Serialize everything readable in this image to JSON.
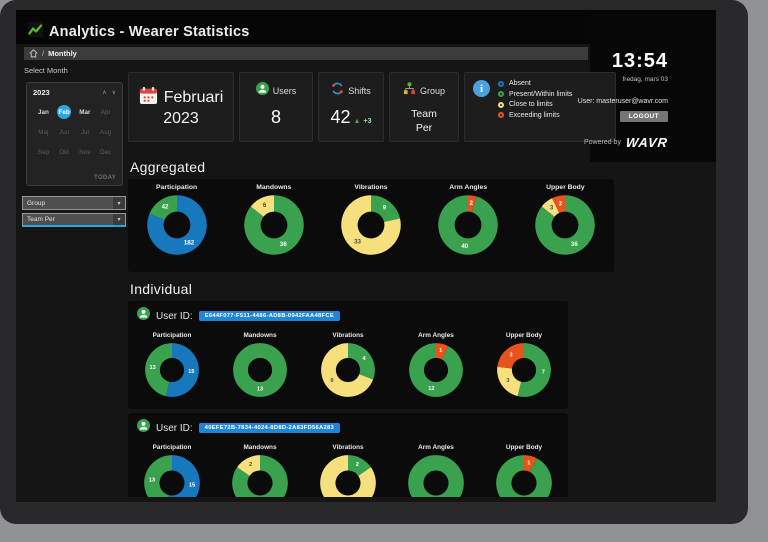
{
  "window": {
    "title": "Analytics - Wearer Statistics",
    "breadcrumb": {
      "separator": "/",
      "current": "Monthly"
    },
    "select_month_label": "Select Month",
    "clock": {
      "time": "13:54",
      "date": "fredag, mars 03"
    },
    "account": {
      "user": "User: masteruser@wavr.com",
      "logout": "LOGOUT",
      "powered_by": "Powered by",
      "brand": "WAVR"
    }
  },
  "calendar": {
    "year": "2023",
    "today_label": "TODAY",
    "months": [
      {
        "label": "Jan",
        "state": "enabled"
      },
      {
        "label": "Feb",
        "state": "selected"
      },
      {
        "label": "Mar",
        "state": "enabled"
      },
      {
        "label": "Apr",
        "state": "disabled"
      },
      {
        "label": "Maj",
        "state": "disabled"
      },
      {
        "label": "Jun",
        "state": "disabled"
      },
      {
        "label": "Jul",
        "state": "disabled"
      },
      {
        "label": "Aug",
        "state": "disabled"
      },
      {
        "label": "Sep",
        "state": "disabled"
      },
      {
        "label": "Okt",
        "state": "disabled"
      },
      {
        "label": "Nov",
        "state": "disabled"
      },
      {
        "label": "Dec",
        "state": "disabled"
      }
    ]
  },
  "filters": {
    "group": "Group",
    "team": "Team Per"
  },
  "cards": {
    "period": {
      "line1": "Februari",
      "line2": "2023"
    },
    "users": {
      "label": "Users",
      "value": "8"
    },
    "shifts": {
      "label": "Shifts",
      "value": "42",
      "trend_arrow": "▲",
      "trend": "+3"
    },
    "group": {
      "label": "Group",
      "value": "Team Per"
    }
  },
  "legend": {
    "items": [
      {
        "status": "absent",
        "label": "Absent"
      },
      {
        "status": "present",
        "label": "Present/Within limits"
      },
      {
        "status": "close",
        "label": "Close to limits"
      },
      {
        "status": "exceed",
        "label": "Exceeding limits"
      }
    ]
  },
  "colors": {
    "absent": "#1878bd",
    "present": "#3aa24e",
    "close": "#f6df7d",
    "exceed": "#e8521c",
    "accent_blue": "#2aa7e0",
    "badge_blue": "#1d86d8"
  },
  "chart_data": {
    "type": "donut",
    "legend_position": "top-right card",
    "aggregated": {
      "heading": "Aggregated",
      "charts": [
        {
          "title": "Participation",
          "segments": [
            {
              "status": "absent",
              "value": 182
            },
            {
              "status": "present",
              "value": 42
            }
          ]
        },
        {
          "title": "Mandowns",
          "segments": [
            {
              "status": "present",
              "value": 36
            },
            {
              "status": "close",
              "value": 6
            }
          ]
        },
        {
          "title": "Vibrations",
          "segments": [
            {
              "status": "present",
              "value": 9
            },
            {
              "status": "close",
              "value": 33
            }
          ]
        },
        {
          "title": "Arm Angles",
          "segments": [
            {
              "status": "exceed",
              "value": 2
            },
            {
              "status": "present",
              "value": 40
            }
          ]
        },
        {
          "title": "Upper Body",
          "segments": [
            {
              "status": "present",
              "value": 36
            },
            {
              "status": "close",
              "value": 3
            },
            {
              "status": "exceed",
              "value": 3
            }
          ]
        }
      ]
    },
    "individual": {
      "heading": "Individual",
      "user_id_label": "User ID:",
      "rows": [
        {
          "user_id": "E644F077-F511-4486-AD8B-0942FAA48FCE",
          "charts": [
            {
              "title": "Participation",
              "segments": [
                {
                  "status": "absent",
                  "value": 15
                },
                {
                  "status": "present",
                  "value": 13
                }
              ]
            },
            {
              "title": "Mandowns",
              "segments": [
                {
                  "status": "present",
                  "value": 13
                }
              ]
            },
            {
              "title": "Vibrations",
              "segments": [
                {
                  "status": "present",
                  "value": 4
                },
                {
                  "status": "close",
                  "value": 9
                }
              ]
            },
            {
              "title": "Arm Angles",
              "segments": [
                {
                  "status": "exceed",
                  "value": 1
                },
                {
                  "status": "present",
                  "value": 12
                }
              ]
            },
            {
              "title": "Upper Body",
              "segments": [
                {
                  "status": "present",
                  "value": 7
                },
                {
                  "status": "close",
                  "value": 3
                },
                {
                  "status": "exceed",
                  "value": 3
                }
              ]
            }
          ]
        },
        {
          "user_id": "40EFE72B-7834-4024-8D8D-2A83FD56A283",
          "charts": [
            {
              "title": "Participation",
              "segments": [
                {
                  "status": "absent",
                  "value": 15
                },
                {
                  "status": "present",
                  "value": 13
                }
              ]
            },
            {
              "title": "Mandowns",
              "segments": [
                {
                  "status": "present",
                  "value": 11
                },
                {
                  "status": "close",
                  "value": 2
                }
              ]
            },
            {
              "title": "Vibrations",
              "segments": [
                {
                  "status": "present",
                  "value": 2
                },
                {
                  "status": "close",
                  "value": 11
                }
              ]
            },
            {
              "title": "Arm Angles",
              "segments": [
                {
                  "status": "present",
                  "value": 13
                }
              ]
            },
            {
              "title": "Upper Body",
              "segments": [
                {
                  "status": "exceed",
                  "value": 1
                },
                {
                  "status": "present",
                  "value": 12
                }
              ]
            }
          ]
        }
      ]
    }
  }
}
